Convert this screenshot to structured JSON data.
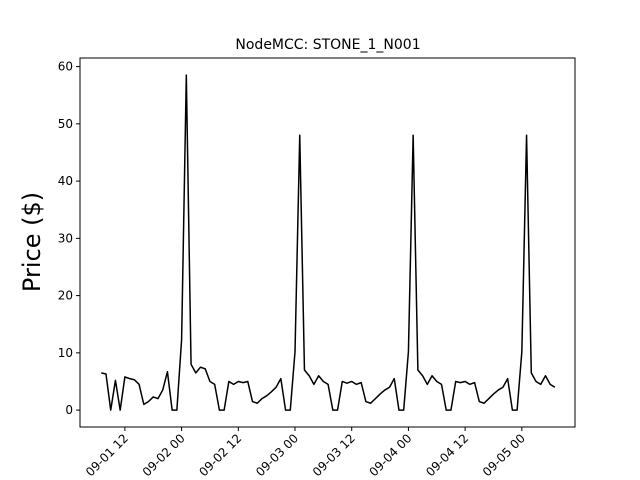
{
  "chart_data": {
    "type": "line",
    "title": "NodeMCC: STONE_1_N001",
    "ylabel": "Price ($)",
    "color": "#000000",
    "x": [
      "09-01 07",
      "09-01 08",
      "09-01 09",
      "09-01 10",
      "09-01 11",
      "09-01 12",
      "09-01 13",
      "09-01 14",
      "09-01 15",
      "09-01 16",
      "09-01 17",
      "09-01 18",
      "09-01 19",
      "09-01 20",
      "09-01 21",
      "09-01 22",
      "09-01 23",
      "09-02 00",
      "09-02 01",
      "09-02 02",
      "09-02 03",
      "09-02 04",
      "09-02 05",
      "09-02 06",
      "09-02 07",
      "09-02 08",
      "09-02 09",
      "09-02 10",
      "09-02 11",
      "09-02 12",
      "09-02 13",
      "09-02 14",
      "09-02 15",
      "09-02 16",
      "09-02 17",
      "09-02 18",
      "09-02 19",
      "09-02 20",
      "09-02 21",
      "09-02 22",
      "09-02 23",
      "09-03 00",
      "09-03 01",
      "09-03 02",
      "09-03 03",
      "09-03 04",
      "09-03 05",
      "09-03 06",
      "09-03 07",
      "09-03 08",
      "09-03 09",
      "09-03 10",
      "09-03 11",
      "09-03 12",
      "09-03 13",
      "09-03 14",
      "09-03 15",
      "09-03 16",
      "09-03 17",
      "09-03 18",
      "09-03 19",
      "09-03 20",
      "09-03 21",
      "09-03 22",
      "09-03 23",
      "09-04 00",
      "09-04 01",
      "09-04 02",
      "09-04 03",
      "09-04 04",
      "09-04 05",
      "09-04 06",
      "09-04 07",
      "09-04 08",
      "09-04 09",
      "09-04 10",
      "09-04 11",
      "09-04 12",
      "09-04 13",
      "09-04 14",
      "09-04 15",
      "09-04 16",
      "09-04 17",
      "09-04 18",
      "09-04 19",
      "09-04 20",
      "09-04 21",
      "09-04 22",
      "09-04 23",
      "09-05 00",
      "09-05 01",
      "09-05 02",
      "09-05 03",
      "09-05 04",
      "09-05 05",
      "09-05 06",
      "09-05 07"
    ],
    "values": [
      6.5,
      6.3,
      0,
      5.2,
      0,
      5.8,
      5.5,
      5.3,
      4.5,
      1,
      1.5,
      2.3,
      2,
      3.5,
      6.7,
      0,
      0,
      12.3,
      58.5,
      8,
      6.5,
      7.5,
      7.2,
      5,
      4.5,
      0,
      0,
      5,
      4.5,
      5,
      4.8,
      5,
      1.5,
      1.2,
      2,
      2.5,
      3.2,
      4,
      5.5,
      0,
      0,
      10.2,
      48,
      7,
      6,
      4.5,
      6,
      5,
      4.5,
      0,
      0,
      5,
      4.7,
      5,
      4.5,
      4.8,
      1.5,
      1.2,
      2,
      2.8,
      3.5,
      4,
      5.5,
      0,
      0,
      10.2,
      48,
      7,
      6,
      4.5,
      6,
      5,
      4.5,
      0,
      0,
      5,
      4.8,
      5,
      4.5,
      4.8,
      1.5,
      1.2,
      2,
      2.8,
      3.5,
      4,
      5.5,
      0,
      0,
      10.2,
      48,
      6.5,
      5,
      4.5,
      6,
      4.5,
      4
    ],
    "xlim": [
      "09-01 02:30",
      "09-05 11:15"
    ],
    "xticks": [
      "09-01 12",
      "09-02 00",
      "09-02 12",
      "09-03 00",
      "09-03 12",
      "09-04 00",
      "09-04 12",
      "09-05 00"
    ],
    "ylim": [
      -2.95,
      61.5
    ],
    "yticks": [
      0,
      10,
      20,
      30,
      40,
      50,
      60
    ]
  }
}
